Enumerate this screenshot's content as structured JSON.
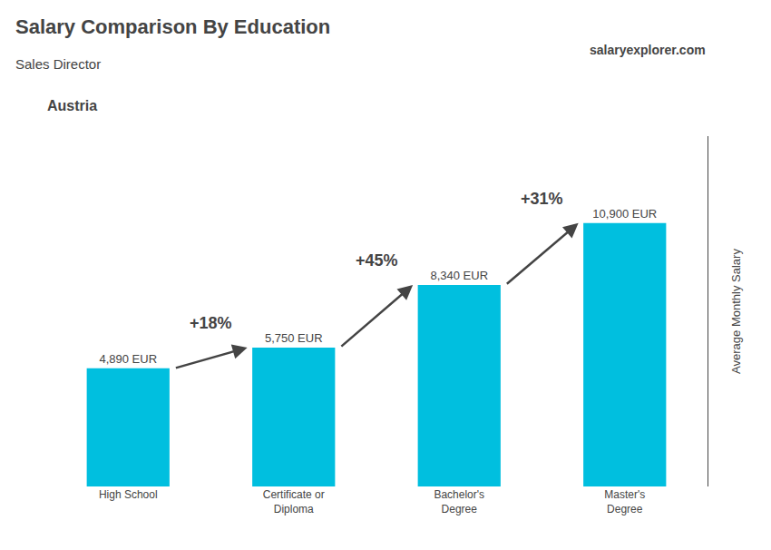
{
  "chart_data": {
    "type": "bar",
    "title": "Salary Comparison By Education",
    "subtitle": "Sales Director",
    "ylabel": "Average Monthly Salary",
    "categories": [
      "High School",
      "Certificate or\nDiploma",
      "Bachelor's\nDegree",
      "Master's\nDegree"
    ],
    "values": [
      4890,
      5750,
      8340,
      10900
    ],
    "value_labels": [
      "4,890 EUR",
      "5,750 EUR",
      "8,340 EUR",
      "10,900 EUR"
    ],
    "data_labels": true,
    "color": "#00bfdf",
    "ylim": [
      0,
      14500
    ],
    "yticks": [],
    "grid": false,
    "tick_labels": "x",
    "annotations": [
      {
        "text": "Austria"
      },
      {
        "text": "salaryexplorer.com"
      },
      {
        "text": "+18%",
        "from": "High School",
        "to": "Certificate or\nDiploma"
      },
      {
        "text": "+45%",
        "from": "Certificate or\nDiploma",
        "to": "Bachelor's\nDegree"
      },
      {
        "text": "+31%",
        "from": "Bachelor's\nDegree",
        "to": "Master's\nDegree"
      }
    ]
  }
}
